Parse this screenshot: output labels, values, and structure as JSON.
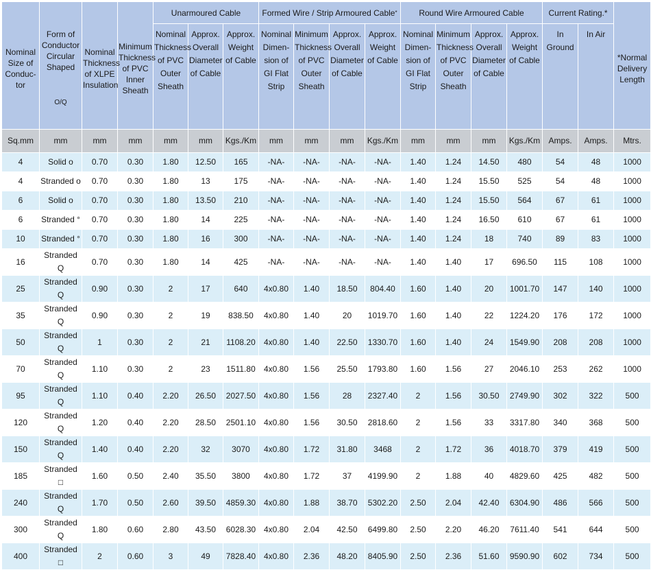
{
  "header": {
    "size_of_conductor": "Nominal Size of Conduc- tor",
    "form_of_conductor": "Form of Conductor Circular Shaped",
    "form_of_conductor_note": "O/Q",
    "xlpe_insulation": "Nominal Thickness of XLPE Insulation",
    "pvc_inner_sheath": "Minimum Thickness of PVC Inner Sheath",
    "group_unarmoured": "Unarmoured Cable",
    "group_strip_armoured": "Formed Wire / Strip Armoured Cable",
    "group_strip_armoured_mark": "*",
    "group_round_wire": "Round Wire Armoured Cable",
    "group_current_rating": "Current Rating.*",
    "normal_delivery_length": "*Normal Delivery Length",
    "unarm_pvc_outer": "Nominal Thickness of PVC Outer Sheath",
    "unarm_diameter": "Approx. Overall Diameter of Cable",
    "unarm_weight": "Approx. Weight of Cable",
    "strip_dimension": "Nominal Dimen- sion of GI Flat Strip",
    "strip_pvc_outer": "Minimum Thickness of PVC Outer Sheath",
    "strip_diameter": "Approx. Overall Diameter of Cable",
    "strip_weight": "Approx. Weight of Cable",
    "round_dimension": "Nominal Dimen- sion of GI Flat Strip",
    "round_pvc_outer": "Minimum Thickness of PVC Outer Sheath",
    "round_diameter": "Approx. Overall Diameter of Cable",
    "round_weight": "Approx. Weight of Cable",
    "in_ground": "In Ground",
    "in_air": "In Air"
  },
  "units": [
    "Sq.mm",
    "mm",
    "mm",
    "mm",
    "mm",
    "mm",
    "Kgs./Km",
    "mm",
    "mm",
    "mm",
    "Kgs./Km",
    "mm",
    "mm",
    "mm",
    "Kgs./Km",
    "Amps.",
    "Amps.",
    "Mtrs."
  ],
  "rows": [
    [
      "4",
      "Solid o",
      "0.70",
      "0.30",
      "1.80",
      "12.50",
      "165",
      "-NA-",
      "-NA-",
      "-NA-",
      "-NA-",
      "1.40",
      "1.24",
      "14.50",
      "480",
      "54",
      "48",
      "1000"
    ],
    [
      "4",
      "Stranded o",
      "0.70",
      "0.30",
      "1.80",
      "13",
      "175",
      "-NA-",
      "-NA-",
      "-NA-",
      "-NA-",
      "1.40",
      "1.24",
      "15.50",
      "525",
      "54",
      "48",
      "1000"
    ],
    [
      "6",
      "Solid o",
      "0.70",
      "0.30",
      "1.80",
      "13.50",
      "210",
      "-NA-",
      "-NA-",
      "-NA-",
      "-NA-",
      "1.40",
      "1.24",
      "15.50",
      "564",
      "67",
      "61",
      "1000"
    ],
    [
      "6",
      "Stranded °",
      "0.70",
      "0.30",
      "1.80",
      "14",
      "225",
      "-NA-",
      "-NA-",
      "-NA-",
      "-NA-",
      "1.40",
      "1.24",
      "16.50",
      "610",
      "67",
      "61",
      "1000"
    ],
    [
      "10",
      "Stranded °",
      "0.70",
      "0.30",
      "1.80",
      "16",
      "300",
      "-NA-",
      "-NA-",
      "-NA-",
      "-NA-",
      "1.40",
      "1.24",
      "18",
      "740",
      "89",
      "83",
      "1000"
    ],
    [
      "16",
      "Stranded Q",
      "0.70",
      "0.30",
      "1.80",
      "14",
      "425",
      "-NA-",
      "-NA-",
      "-NA-",
      "-NA-",
      "1.40",
      "1.40",
      "17",
      "696.50",
      "115",
      "108",
      "1000"
    ],
    [
      "25",
      "Stranded Q",
      "0.90",
      "0.30",
      "2",
      "17",
      "640",
      "4x0.80",
      "1.40",
      "18.50",
      "804.40",
      "1.60",
      "1.40",
      "20",
      "1001.70",
      "147",
      "140",
      "1000"
    ],
    [
      "35",
      "Stranded Q",
      "0.90",
      "0.30",
      "2",
      "19",
      "838.50",
      "4x0.80",
      "1.40",
      "20",
      "1019.70",
      "1.60",
      "1.40",
      "22",
      "1224.20",
      "176",
      "172",
      "1000"
    ],
    [
      "50",
      "Stranded Q",
      "1",
      "0.30",
      "2",
      "21",
      "1108.20",
      "4x0.80",
      "1.40",
      "22.50",
      "1330.70",
      "1.60",
      "1.40",
      "24",
      "1549.90",
      "208",
      "208",
      "1000"
    ],
    [
      "70",
      "Stranded Q",
      "1.10",
      "0.30",
      "2",
      "23",
      "1511.80",
      "4x0.80",
      "1.56",
      "25.50",
      "1793.80",
      "1.60",
      "1.56",
      "27",
      "2046.10",
      "253",
      "262",
      "1000"
    ],
    [
      "95",
      "Stranded Q",
      "1.10",
      "0.40",
      "2.20",
      "26.50",
      "2027.50",
      "4x0.80",
      "1.56",
      "28",
      "2327.40",
      "2",
      "1.56",
      "30.50",
      "2749.90",
      "302",
      "322",
      "500"
    ],
    [
      "120",
      "Stranded Q",
      "1.20",
      "0.40",
      "2.20",
      "28.50",
      "2501.10",
      "4x0.80",
      "1.56",
      "30.50",
      "2818.60",
      "2",
      "1.56",
      "33",
      "3317.80",
      "340",
      "368",
      "500"
    ],
    [
      "150",
      "Stranded Q",
      "1.40",
      "0.40",
      "2.20",
      "32",
      "3070",
      "4x0.80",
      "1.72",
      "31.80",
      "3468",
      "2",
      "1.72",
      "36",
      "4018.70",
      "379",
      "419",
      "500"
    ],
    [
      "185",
      "Stranded □",
      "1.60",
      "0.50",
      "2.40",
      "35.50",
      "3800",
      "4x0.80",
      "1.72",
      "37",
      "4199.90",
      "2",
      "1.88",
      "40",
      "4829.60",
      "425",
      "482",
      "500"
    ],
    [
      "240",
      "Stranded Q",
      "1.70",
      "0.50",
      "2.60",
      "39.50",
      "4859.30",
      "4x0.80",
      "1.88",
      "38.70",
      "5302.20",
      "2.50",
      "2.04",
      "42.40",
      "6304.90",
      "486",
      "566",
      "500"
    ],
    [
      "300",
      "Stranded Q",
      "1.80",
      "0.60",
      "2.80",
      "43.50",
      "6028.30",
      "4x0.80",
      "2.04",
      "42.50",
      "6499.80",
      "2.50",
      "2.20",
      "46.20",
      "7611.40",
      "541",
      "644",
      "500"
    ],
    [
      "400",
      "Stranded □",
      "2",
      "0.60",
      "3",
      "49",
      "7828.40",
      "4x0.80",
      "2.36",
      "48.20",
      "8405.90",
      "2.50",
      "2.36",
      "51.60",
      "9590.90",
      "602",
      "734",
      "500"
    ]
  ]
}
